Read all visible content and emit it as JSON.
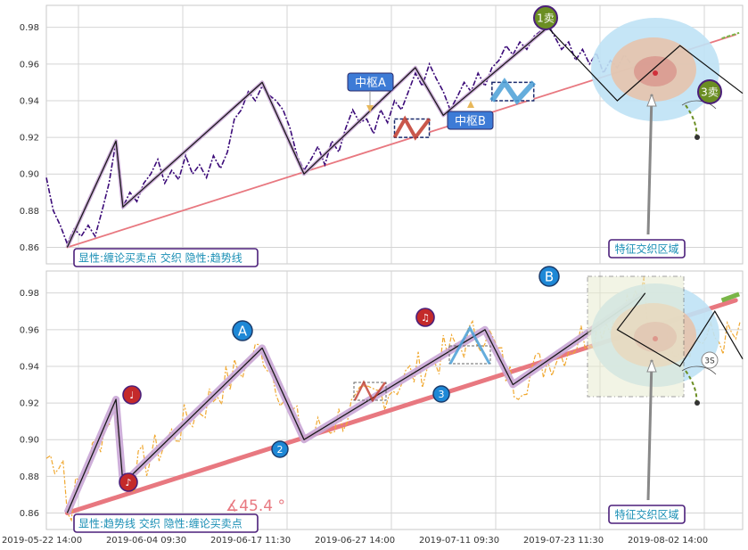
{
  "chart_data": [
    {
      "type": "line",
      "panel": "top",
      "ylim": [
        0.851,
        0.992
      ],
      "yticks": [
        0.86,
        0.88,
        0.9,
        0.92,
        0.94,
        0.96,
        0.98
      ],
      "grid": true,
      "legend_text": "显性:缠论买卖点 交织 隐性:趋势线",
      "annotation_labels": {
        "zhongshu_a": "中枢A",
        "zhongshu_b": "中枢B",
        "sell_1": "1卖",
        "sell_3": "3卖",
        "feature_zone": "特征交织区域"
      },
      "price_series": [
        [
          0,
          0.898
        ],
        [
          1,
          0.88
        ],
        [
          2,
          0.872
        ],
        [
          3,
          0.862
        ],
        [
          4,
          0.87
        ],
        [
          5,
          0.866
        ],
        [
          6,
          0.872
        ],
        [
          7,
          0.866
        ],
        [
          8,
          0.88
        ],
        [
          9,
          0.895
        ],
        [
          10,
          0.918
        ],
        [
          11,
          0.882
        ],
        [
          12,
          0.89
        ],
        [
          13,
          0.885
        ],
        [
          14,
          0.895
        ],
        [
          15,
          0.9
        ],
        [
          16,
          0.908
        ],
        [
          17,
          0.895
        ],
        [
          18,
          0.902
        ],
        [
          19,
          0.897
        ],
        [
          20,
          0.91
        ],
        [
          21,
          0.9
        ],
        [
          22,
          0.905
        ],
        [
          23,
          0.898
        ],
        [
          24,
          0.91
        ],
        [
          25,
          0.903
        ],
        [
          26,
          0.912
        ],
        [
          27,
          0.93
        ],
        [
          28,
          0.935
        ],
        [
          29,
          0.945
        ],
        [
          30,
          0.94
        ],
        [
          31,
          0.948
        ],
        [
          32,
          0.943
        ],
        [
          33,
          0.94
        ],
        [
          34,
          0.935
        ],
        [
          35,
          0.925
        ],
        [
          36,
          0.91
        ],
        [
          37,
          0.902
        ],
        [
          38,
          0.908
        ],
        [
          39,
          0.915
        ],
        [
          40,
          0.905
        ],
        [
          41,
          0.918
        ],
        [
          42,
          0.912
        ],
        [
          43,
          0.925
        ],
        [
          44,
          0.935
        ],
        [
          45,
          0.928
        ],
        [
          46,
          0.93
        ],
        [
          47,
          0.922
        ],
        [
          48,
          0.935
        ],
        [
          49,
          0.928
        ],
        [
          50,
          0.94
        ],
        [
          51,
          0.935
        ],
        [
          52,
          0.945
        ],
        [
          53,
          0.955
        ],
        [
          54,
          0.948
        ],
        [
          55,
          0.96
        ],
        [
          56,
          0.952
        ],
        [
          57,
          0.945
        ],
        [
          58,
          0.935
        ],
        [
          59,
          0.942
        ],
        [
          60,
          0.95
        ],
        [
          61,
          0.945
        ],
        [
          62,
          0.955
        ],
        [
          63,
          0.948
        ],
        [
          64,
          0.958
        ],
        [
          65,
          0.962
        ],
        [
          66,
          0.97
        ],
        [
          67,
          0.965
        ],
        [
          68,
          0.972
        ],
        [
          69,
          0.968
        ],
        [
          70,
          0.975
        ],
        [
          71,
          0.978
        ],
        [
          72,
          0.982
        ],
        [
          73,
          0.975
        ],
        [
          74,
          0.968
        ],
        [
          75,
          0.972
        ],
        [
          76,
          0.962
        ],
        [
          77,
          0.968
        ],
        [
          78,
          0.96
        ],
        [
          79,
          0.966
        ],
        [
          80,
          0.955
        ],
        [
          81,
          0.962
        ],
        [
          82,
          0.958
        ],
        [
          83,
          0.965
        ],
        [
          84,
          0.96
        ]
      ],
      "bi_polyline": [
        [
          3,
          0.86
        ],
        [
          10,
          0.918
        ],
        [
          11,
          0.882
        ],
        [
          31,
          0.95
        ],
        [
          37,
          0.9
        ],
        [
          53,
          0.958
        ],
        [
          57,
          0.932
        ],
        [
          72,
          0.98
        ]
      ],
      "trend_line": [
        [
          3,
          0.86
        ],
        [
          99,
          0.976
        ]
      ],
      "zhongshu_boxes": [
        {
          "x0": 50,
          "x1": 55,
          "y0": 0.92,
          "y1": 0.93
        },
        {
          "x0": 64,
          "x1": 70,
          "y0": 0.94,
          "y1": 0.95
        }
      ],
      "forecast_line": [
        [
          72,
          0.98
        ],
        [
          82,
          0.94
        ],
        [
          91,
          0.97
        ],
        [
          100,
          0.944
        ]
      ]
    },
    {
      "type": "line",
      "panel": "bottom",
      "ylim": [
        0.851,
        0.992
      ],
      "yticks": [
        0.86,
        0.88,
        0.9,
        0.92,
        0.94,
        0.96,
        0.98
      ],
      "grid": true,
      "legend_text": "显性:趋势线 交织 隐性:缠论买卖点",
      "angle_label": "∡45.4 °",
      "annotation_labels": {
        "point_a": "A",
        "point_b": "B",
        "point_2": "2",
        "point_3": "3",
        "point_3s": "3S",
        "buy_note_1": "♩",
        "buy_note_2": "♪",
        "sell_note": "♫",
        "feature_zone": "特征交织区域"
      },
      "x_tick_labels": [
        "2019-05-22 14:00",
        "2019-06-04 09:30",
        "2019-06-17 11:30",
        "2019-06-27 14:00",
        "2019-07-11 09:30",
        "2019-07-23 11:30",
        "2019-08-02 14:00"
      ],
      "bi_polyline": [
        [
          3,
          0.86
        ],
        [
          10,
          0.922
        ],
        [
          11,
          0.876
        ],
        [
          31,
          0.95
        ],
        [
          37,
          0.9
        ],
        [
          63,
          0.96
        ],
        [
          67,
          0.93
        ],
        [
          86,
          0.98
        ]
      ],
      "trend_line": [
        [
          3,
          0.86
        ],
        [
          99,
          0.976
        ]
      ],
      "forecast_line": [
        [
          86,
          0.98
        ],
        [
          82,
          0.96
        ],
        [
          91,
          0.94
        ],
        [
          96,
          0.97
        ],
        [
          100,
          0.944
        ]
      ]
    }
  ],
  "colors": {
    "top_price": "#3b0a78",
    "bottom_price": "#f0a830",
    "trend": "#e87880",
    "bi_shadow": "#c9a6d6",
    "legend_border": "#4b1f7a",
    "legend_text": "#1a8fb5",
    "zhongshu_label": "#3d7bd6",
    "sell_marker": "#6b8e23",
    "point_blue": "#1e88d6",
    "note_red": "#c42a2a"
  }
}
